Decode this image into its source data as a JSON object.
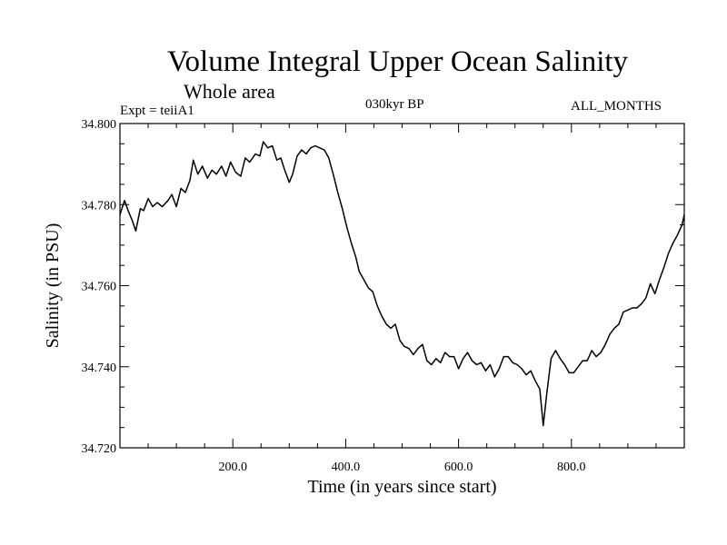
{
  "header": {
    "title": "Volume Integral Upper Ocean Salinity",
    "subtitle": "Whole area",
    "expt": "Expt = teiiA1",
    "period": "030kyr BP",
    "months": "ALL_MONTHS"
  },
  "chart_data": {
    "type": "line",
    "title": "Volume Integral Upper Ocean Salinity",
    "subtitle": "Whole area",
    "xlabel": "Time (in years since start)",
    "ylabel": "Salinity (in PSU)",
    "xlim": [
      0,
      1000
    ],
    "ylim": [
      34.72,
      34.8
    ],
    "xticks": [
      200,
      400,
      600,
      800
    ],
    "xtick_labels": [
      "200.0",
      "400.0",
      "600.0",
      "800.0"
    ],
    "yticks": [
      34.72,
      34.74,
      34.76,
      34.78,
      34.8
    ],
    "ytick_labels": [
      "34.720",
      "34.740",
      "34.760",
      "34.780",
      "34.800"
    ],
    "grid": false,
    "line_color": "#000000",
    "series": [
      {
        "x": [
          0,
          8,
          16,
          22,
          28,
          36,
          42,
          50,
          58,
          66,
          75,
          85,
          92,
          100,
          108,
          116,
          124,
          130,
          138,
          146,
          155,
          163,
          171,
          180,
          188,
          196,
          205,
          214,
          222,
          230,
          240,
          248,
          254,
          262,
          270,
          278,
          285,
          292,
          300,
          306,
          314,
          322,
          330,
          338,
          346,
          354,
          362,
          370,
          378,
          386,
          394,
          402,
          410,
          418,
          424,
          432,
          440,
          448,
          456,
          464,
          472,
          480,
          488,
          496,
          504,
          512,
          520,
          528,
          536,
          544,
          552,
          560,
          568,
          576,
          584,
          592,
          600,
          608,
          616,
          624,
          632,
          640,
          648,
          656,
          664,
          672,
          680,
          688,
          696,
          704,
          712,
          720,
          728,
          736,
          744,
          750,
          756,
          764,
          772,
          780,
          788,
          796,
          804,
          812,
          820,
          828,
          836,
          844,
          852,
          860,
          868,
          876,
          884,
          892,
          900,
          908,
          916,
          924,
          932,
          940,
          948,
          956,
          964,
          972,
          980,
          988,
          996,
          1000
        ],
        "y": [
          34.7775,
          34.781,
          34.778,
          34.776,
          34.7735,
          34.779,
          34.7785,
          34.7815,
          34.7795,
          34.7805,
          34.7795,
          34.781,
          34.7825,
          34.7795,
          34.784,
          34.783,
          34.786,
          34.791,
          34.7875,
          34.7895,
          34.7865,
          34.7885,
          34.7875,
          34.7895,
          34.787,
          34.7905,
          34.788,
          34.787,
          34.7915,
          34.7905,
          34.7925,
          34.792,
          34.7955,
          34.794,
          34.7945,
          34.791,
          34.7915,
          34.7885,
          34.7855,
          34.7875,
          34.792,
          34.7935,
          34.7925,
          34.794,
          34.7945,
          34.794,
          34.7935,
          34.7915,
          34.7875,
          34.783,
          34.779,
          34.7745,
          34.7705,
          34.767,
          34.7635,
          34.7615,
          34.7595,
          34.7585,
          34.755,
          34.7525,
          34.7505,
          34.7495,
          34.7505,
          34.7465,
          34.745,
          34.7445,
          34.743,
          34.7445,
          34.7455,
          34.7415,
          34.7405,
          34.742,
          34.741,
          34.7435,
          34.7425,
          34.7425,
          34.7395,
          34.742,
          34.7435,
          34.7415,
          34.7405,
          34.741,
          34.739,
          34.7405,
          34.7375,
          34.7395,
          34.7425,
          34.7425,
          34.741,
          34.7405,
          34.7395,
          34.738,
          34.739,
          34.7365,
          34.7345,
          34.7255,
          34.733,
          34.742,
          34.744,
          34.742,
          34.7405,
          34.7385,
          34.7385,
          34.74,
          34.7415,
          34.7415,
          34.744,
          34.7425,
          34.7435,
          34.7455,
          34.748,
          34.7495,
          34.7505,
          34.7535,
          34.754,
          34.7545,
          34.7545,
          34.7555,
          34.757,
          34.7605,
          34.758,
          34.7615,
          34.7645,
          34.768,
          34.7705,
          34.7725,
          34.775,
          34.7775
        ]
      }
    ]
  }
}
